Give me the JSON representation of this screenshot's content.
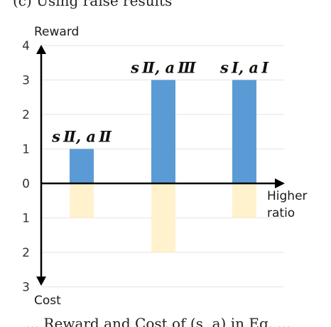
{
  "caption_top": "(c) Using raise results",
  "caption_bottom": "... Reward and Cost of (s, a) in Eq. ...",
  "chart_data": {
    "type": "bar",
    "categories": [
      "s_II, a_II",
      "s_II, a_III",
      "s_I, a_I"
    ],
    "category_labels": [
      "s Ⅱ, a Ⅱ",
      "s Ⅱ, a Ⅲ",
      "s I, a I"
    ],
    "series": [
      {
        "name": "Reward",
        "values": [
          1,
          3,
          3
        ],
        "color": "#5b9bd5"
      },
      {
        "name": "Cost",
        "values": [
          1,
          2,
          1
        ],
        "color": "#fff2cc"
      }
    ],
    "ylabel_top": "Reward",
    "ylabel_bottom": "Cost",
    "xlabel_lines": [
      "Higher",
      "ratio"
    ],
    "reward_ticks": [
      0,
      1,
      2,
      3,
      4
    ],
    "cost_ticks": [
      1,
      2,
      3
    ],
    "reward_ylim": [
      0,
      4
    ],
    "cost_ylim": [
      0,
      3
    ],
    "grid": true
  }
}
